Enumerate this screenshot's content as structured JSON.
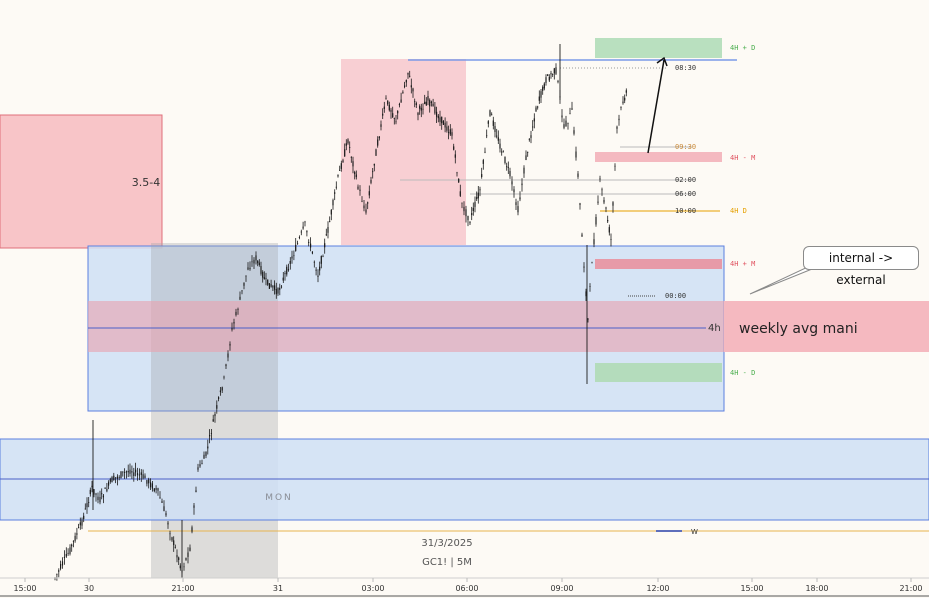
{
  "chart_data": {
    "type": "candlestick",
    "instrument": "GC1! | 5M",
    "date_label": "31/3/2025",
    "watermark_session": "MON",
    "x_ticks": [
      "15:00",
      "30",
      "21:00",
      "31",
      "03:00",
      "06:00",
      "09:00",
      "12:00",
      "15:00",
      "18:00",
      "21:00"
    ],
    "zone_labels": {
      "left_box": "3.5-4",
      "weekly_band": "weekly avg mani",
      "weekly_line_tag": "4h",
      "w_tag": "W"
    },
    "right_labels": [
      {
        "time": "08:30",
        "tag": "4H + D",
        "tag_color": "#4caf50"
      },
      {
        "time": "09:30",
        "tag": "4H - M",
        "tag_color": "#e05260"
      },
      {
        "time": "02:00",
        "tag": ""
      },
      {
        "time": "06:00",
        "tag": ""
      },
      {
        "time": "10:00",
        "tag": "4H  D",
        "tag_color": "#e6a000"
      },
      {
        "time": "",
        "tag": "4H + M",
        "tag_color": "#e05260"
      },
      {
        "time": "00:00",
        "tag": ""
      },
      {
        "time": "",
        "tag": "4H - D",
        "tag_color": "#4caf50"
      }
    ],
    "callout": "internal -> external",
    "colors": {
      "bull": "#1a1a1a",
      "bear": "#1a1a1a",
      "blue_zone": "#c9dcf5",
      "red_zone": "#f6c2c6",
      "green_zone": "#b9e0bf",
      "gray_session": "#9ea0a4",
      "gold_line": "#e6a000"
    }
  }
}
